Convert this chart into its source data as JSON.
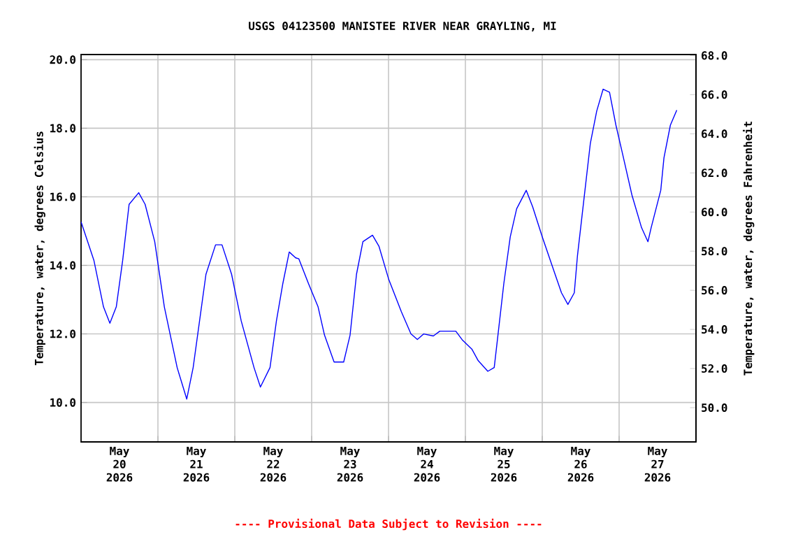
{
  "chart_data": {
    "type": "line",
    "title": "USGS 04123500 MANISTEE RIVER NEAR GRAYLING, MI",
    "ylabel": "Temperature, water, degrees Celsius",
    "y2label": "Temperature, water, degrees Fahrenheit",
    "annotations": [
      "---- Provisional Data Subject to Revision ----"
    ],
    "x": [
      "2026-05-20T00:00",
      "2026-05-20T04:00",
      "2026-05-20T07:00",
      "2026-05-20T09:00",
      "2026-05-20T11:00",
      "2026-05-20T13:00",
      "2026-05-20T15:00",
      "2026-05-20T18:00",
      "2026-05-20T20:00",
      "2026-05-20T23:00",
      "2026-05-21T02:00",
      "2026-05-21T06:00",
      "2026-05-21T09:00",
      "2026-05-21T11:00",
      "2026-05-21T13:00",
      "2026-05-21T15:00",
      "2026-05-21T18:00",
      "2026-05-21T20:00",
      "2026-05-21T23:00",
      "2026-05-22T02:00",
      "2026-05-22T06:00",
      "2026-05-22T08:00",
      "2026-05-22T11:00",
      "2026-05-22T13:00",
      "2026-05-22T15:00",
      "2026-05-22T17:00",
      "2026-05-22T19:00",
      "2026-05-22T20:00",
      "2026-05-22T23:00",
      "2026-05-23T02:00",
      "2026-05-23T04:00",
      "2026-05-23T07:00",
      "2026-05-23T10:00",
      "2026-05-23T12:00",
      "2026-05-23T14:00",
      "2026-05-23T16:00",
      "2026-05-23T19:00",
      "2026-05-23T21:00",
      "2026-05-24T00:00",
      "2026-05-24T04:00",
      "2026-05-24T07:00",
      "2026-05-24T09:00",
      "2026-05-24T11:00",
      "2026-05-24T14:00",
      "2026-05-24T16:00",
      "2026-05-24T21:00",
      "2026-05-24T23:00",
      "2026-05-25T02:00",
      "2026-05-25T04:00",
      "2026-05-25T07:00",
      "2026-05-25T09:00",
      "2026-05-25T10:00",
      "2026-05-25T12:00",
      "2026-05-25T14:00",
      "2026-05-25T16:00",
      "2026-05-25T19:00",
      "2026-05-25T21:00",
      "2026-05-26T00:00",
      "2026-05-26T04:00",
      "2026-05-26T06:00",
      "2026-05-26T08:00",
      "2026-05-26T10:00",
      "2026-05-26T11:00",
      "2026-05-26T13:00",
      "2026-05-26T15:00",
      "2026-05-26T17:00",
      "2026-05-26T19:00",
      "2026-05-26T21:00",
      "2026-05-26T23:00",
      "2026-05-27T01:00",
      "2026-05-27T04:00",
      "2026-05-27T07:00",
      "2026-05-27T09:00",
      "2026-05-27T10:00",
      "2026-05-27T13:00",
      "2026-05-27T14:00",
      "2026-05-27T16:00",
      "2026-05-27T18:00"
    ],
    "series": [
      {
        "color": "#0000ff",
        "values": [
          15.27,
          14.15,
          12.79,
          12.31,
          12.79,
          14.15,
          15.78,
          16.12,
          15.78,
          14.69,
          12.79,
          11.02,
          10.1,
          11.02,
          12.38,
          13.74,
          14.6,
          14.6,
          13.74,
          12.38,
          11.02,
          10.45,
          11.02,
          12.38,
          13.47,
          14.39,
          14.22,
          14.19,
          13.47,
          12.79,
          11.97,
          11.18,
          11.18,
          11.97,
          13.74,
          14.69,
          14.88,
          14.56,
          13.61,
          12.65,
          12.0,
          11.84,
          12.0,
          11.94,
          12.08,
          12.08,
          11.83,
          11.56,
          11.22,
          10.91,
          11.02,
          11.83,
          13.47,
          14.83,
          15.65,
          16.19,
          15.71,
          14.83,
          13.74,
          13.2,
          12.86,
          13.2,
          14.29,
          15.92,
          17.55,
          18.5,
          19.14,
          19.05,
          18.09,
          17.28,
          16.05,
          15.1,
          14.69,
          15.1,
          16.19,
          17.14,
          18.09,
          18.53
        ]
      }
    ],
    "xlim": [
      "2026-05-20T00:00",
      "2026-05-28T00:00"
    ],
    "xticks": [
      {
        "value": "2026-05-20T12:00",
        "label": "May 20 2026"
      },
      {
        "value": "2026-05-21T12:00",
        "label": "May 21 2026"
      },
      {
        "value": "2026-05-22T12:00",
        "label": "May 22 2026"
      },
      {
        "value": "2026-05-23T12:00",
        "label": "May 23 2026"
      },
      {
        "value": "2026-05-24T12:00",
        "label": "May 24 2026"
      },
      {
        "value": "2026-05-25T12:00",
        "label": "May 25 2026"
      },
      {
        "value": "2026-05-26T12:00",
        "label": "May 26 2026"
      },
      {
        "value": "2026-05-27T12:00",
        "label": "May 27 2026"
      },
      {
        "value": "2026-05-21T00:00",
        "label": null
      },
      {
        "value": "2026-05-22T00:00",
        "label": null
      },
      {
        "value": "2026-05-23T00:00",
        "label": null
      },
      {
        "value": "2026-05-24T00:00",
        "label": null
      },
      {
        "value": "2026-05-25T00:00",
        "label": null
      },
      {
        "value": "2026-05-26T00:00",
        "label": null
      },
      {
        "value": "2026-05-27T00:00",
        "label": null
      }
    ],
    "ylim": [
      8.85,
      20.15
    ],
    "yticks": [
      {
        "value": 10,
        "label": "10.0"
      },
      {
        "value": 12,
        "label": "12.0"
      },
      {
        "value": 14,
        "label": "14.0"
      },
      {
        "value": 16,
        "label": "16.0"
      },
      {
        "value": 18,
        "label": "18.0"
      },
      {
        "value": 20,
        "label": "20.0"
      }
    ],
    "y2lim": [
      48.25,
      68.05
    ],
    "y2ticks": [
      {
        "value": 50,
        "label": "50.0"
      },
      {
        "value": 52,
        "label": "52.0"
      },
      {
        "value": 54,
        "label": "54.0"
      },
      {
        "value": 56,
        "label": "56.0"
      },
      {
        "value": 58,
        "label": "58.0"
      },
      {
        "value": 60,
        "label": "60.0"
      },
      {
        "value": 62,
        "label": "62.0"
      },
      {
        "value": 64,
        "label": "64.0"
      },
      {
        "value": 66,
        "label": "66.0"
      },
      {
        "value": 68,
        "label": "68.0"
      }
    ],
    "grid": true,
    "marker": "none",
    "line_style": "solid"
  }
}
